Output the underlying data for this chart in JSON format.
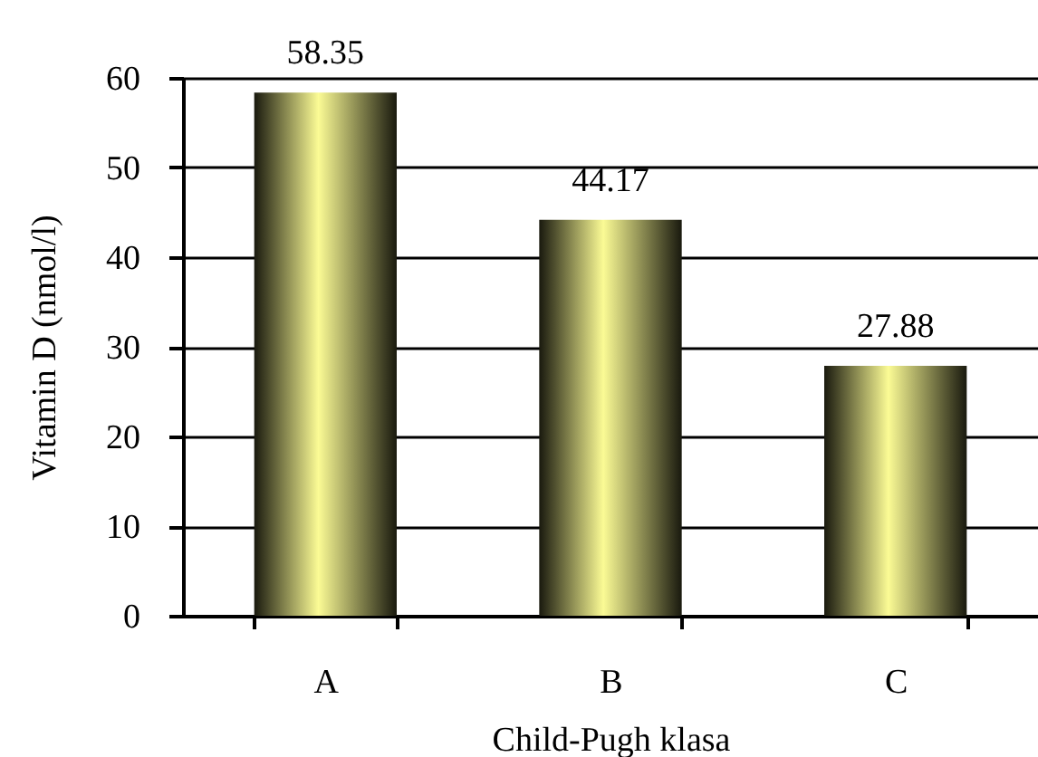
{
  "chart_data": {
    "type": "bar",
    "xlabel": "Child-Pugh klasa",
    "ylabel": "Vitamin D (nmol/l)",
    "categories": [
      "A",
      "B",
      "C"
    ],
    "values": [
      58.35,
      44.17,
      27.88
    ],
    "color": "#fbfb95",
    "ylim": [
      0,
      60
    ],
    "yticks": [
      0,
      10,
      20,
      30,
      40,
      50,
      60
    ],
    "grid": "y",
    "data_labels": true
  }
}
